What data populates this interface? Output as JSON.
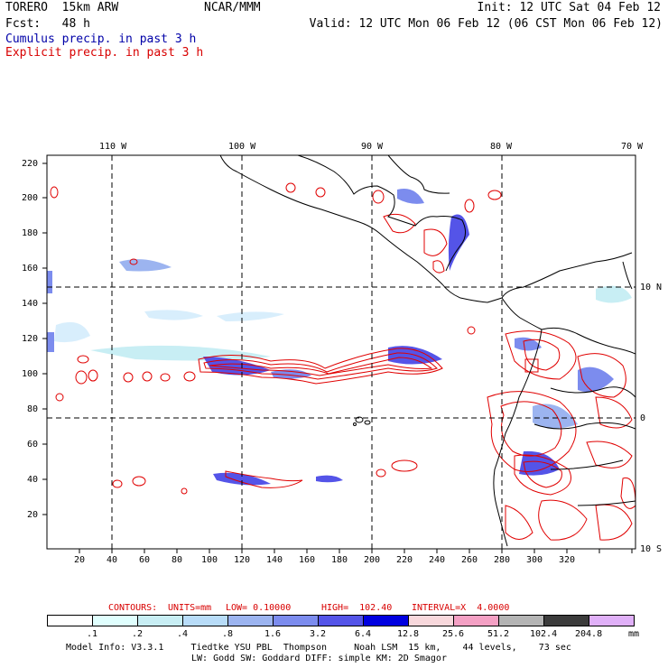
{
  "header": {
    "model": "TORERO  15km ARW",
    "org": "NCAR/MMM",
    "init": "Init: 12 UTC Sat 04 Feb 12",
    "fcst": "Fcst:   48 h",
    "valid": "Valid: 12 UTC Mon 06 Feb 12 (06 CST Mon 06 Feb 12)",
    "field1": "Cumulus precip. in past 3 h",
    "field2": "Explicit precip. in past 3 h"
  },
  "map": {
    "lon_labels": [
      "110 W",
      "100 W",
      "90 W",
      "80 W",
      "70 W"
    ],
    "lat_labels": [
      "10 N",
      "0",
      "10 S"
    ],
    "y_ticks": [
      "220",
      "200",
      "180",
      "160",
      "140",
      "120",
      "100",
      "80",
      "60",
      "40",
      "20"
    ],
    "x_ticks": [
      "20",
      "40",
      "60",
      "80",
      "100",
      "120",
      "140",
      "160",
      "180",
      "200",
      "220",
      "240",
      "260",
      "280",
      "300",
      "320"
    ]
  },
  "contours": {
    "title": "CONTOURS:",
    "units": "UNITS=mm",
    "low": "LOW= 0.10000",
    "high": "HIGH=  102.40",
    "interval": "INTERVAL=X  4.0000"
  },
  "colorbar": {
    "labels": [
      ".1",
      ".2",
      ".4",
      ".8",
      "1.6",
      "3.2",
      "6.4",
      "12.8",
      "25.6",
      "51.2",
      "102.4",
      "204.8"
    ],
    "colors": [
      "#ffffff",
      "#e0fffe",
      "#c8eef4",
      "#b8dcf8",
      "#9cb4f0",
      "#7c8cee",
      "#5454e8",
      "#0000e0",
      "#f8d8dc",
      "#f4a0c4",
      "#b4b4b4",
      "#3c3c3c",
      "#e0b0f8"
    ],
    "unit": "mm"
  },
  "footer": {
    "line1": "Model Info: V3.3.1     Tiedtke YSU PBL  Thompson     Noah LSM  15 km,    44 levels,    73 sec",
    "line2": "LW: Godd SW: Goddard DIFF: simple KM: 2D Smagor"
  }
}
